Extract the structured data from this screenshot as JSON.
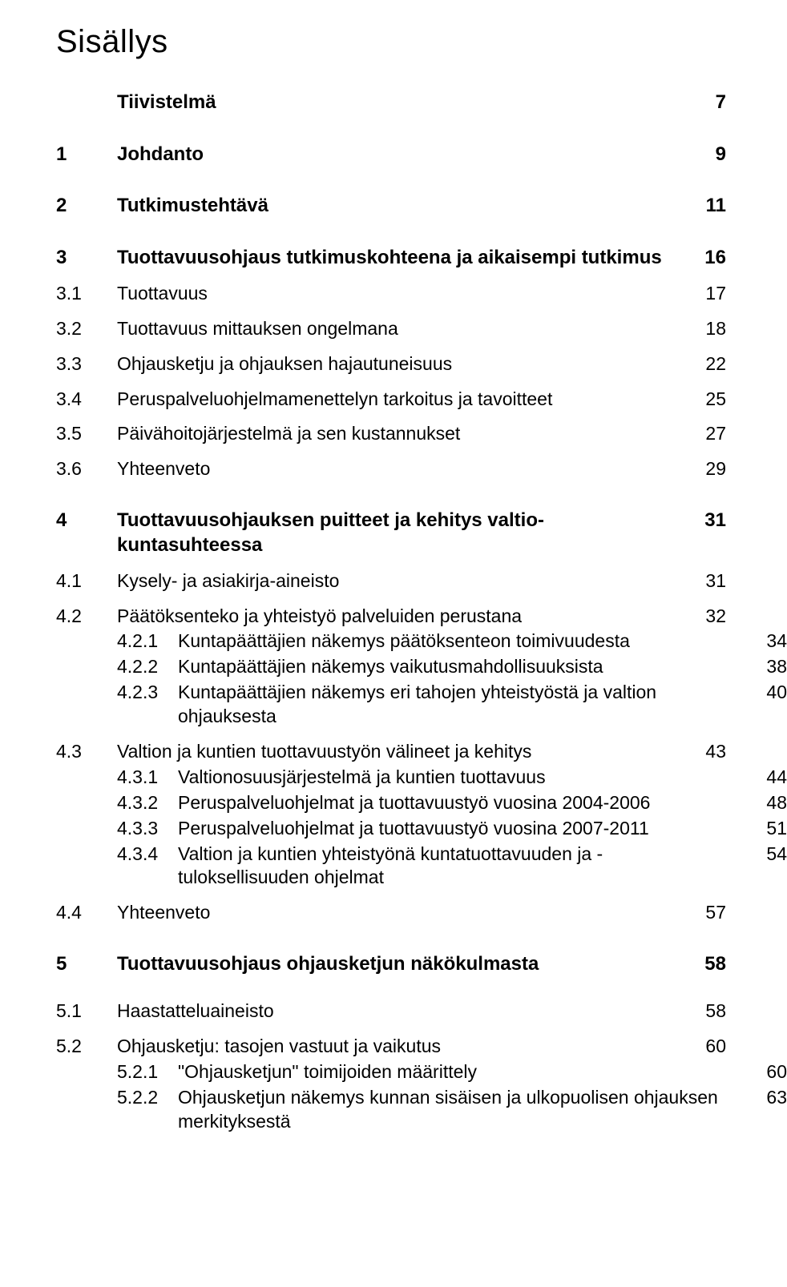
{
  "title": "Sisällys",
  "entries": [
    {
      "kind": "top",
      "num": "",
      "label": "Tiivistelmä",
      "page": "7",
      "bold": true,
      "gap": ""
    },
    {
      "kind": "top",
      "num": "1",
      "label": "Johdanto",
      "page": "9",
      "bold": true,
      "gap": "gap-xl"
    },
    {
      "kind": "top",
      "num": "2",
      "label": "Tutkimustehtävä",
      "page": "11",
      "bold": true,
      "gap": "gap-xl"
    },
    {
      "kind": "top",
      "num": "3",
      "label": "Tuottavuusohjaus tutkimuskohteena ja aikaisempi tutkimus",
      "page": "16",
      "bold": true,
      "gap": "gap-xl"
    },
    {
      "kind": "sub",
      "num": "3.1",
      "label": "Tuottavuus",
      "page": "17",
      "bold": false,
      "gap": "gap-m"
    },
    {
      "kind": "sub",
      "num": "3.2",
      "label": "Tuottavuus mittauksen ongelmana",
      "page": "18",
      "bold": false,
      "gap": "gap-m"
    },
    {
      "kind": "sub",
      "num": "3.3",
      "label": "Ohjausketju ja ohjauksen hajautuneisuus",
      "page": "22",
      "bold": false,
      "gap": "gap-m"
    },
    {
      "kind": "sub",
      "num": "3.4",
      "label": "Peruspalveluohjelmamenettelyn tarkoitus ja tavoitteet",
      "page": "25",
      "bold": false,
      "gap": "gap-m"
    },
    {
      "kind": "sub",
      "num": "3.5",
      "label": "Päivähoitojärjestelmä ja sen kustannukset",
      "page": "27",
      "bold": false,
      "gap": "gap-m"
    },
    {
      "kind": "sub",
      "num": "3.6",
      "label": "Yhteenveto",
      "page": "29",
      "bold": false,
      "gap": "gap-m"
    },
    {
      "kind": "top",
      "num": "4",
      "label": "Tuottavuusohjauksen puitteet ja kehitys valtio-kuntasuhteessa",
      "page": "31",
      "bold": true,
      "gap": "gap-xl"
    },
    {
      "kind": "sub",
      "num": "4.1",
      "label": "Kysely- ja asiakirja-aineisto",
      "page": "31",
      "bold": false,
      "gap": "gap-m"
    },
    {
      "kind": "sub",
      "num": "4.2",
      "label": "Päätöksenteko ja yhteistyö palveluiden perustana",
      "page": "32",
      "bold": false,
      "gap": "gap-m"
    },
    {
      "kind": "sub2",
      "num": "4.2.1",
      "label": "Kuntapäättäjien näkemys päätöksenteon toimivuudesta",
      "page": "34",
      "bold": false,
      "gap": "gap-s"
    },
    {
      "kind": "sub2",
      "num": "4.2.2",
      "label": "Kuntapäättäjien näkemys vaikutusmahdollisuuksista",
      "page": "38",
      "bold": false,
      "gap": "gap-s"
    },
    {
      "kind": "sub2",
      "num": "4.2.3",
      "label": "Kuntapäättäjien näkemys eri tahojen yhteistyöstä ja valtion ohjauksesta",
      "page": "40",
      "bold": false,
      "gap": "gap-s"
    },
    {
      "kind": "sub",
      "num": "4.3",
      "label": "Valtion ja kuntien tuottavuustyön välineet ja kehitys",
      "page": "43",
      "bold": false,
      "gap": "gap-m"
    },
    {
      "kind": "sub2",
      "num": "4.3.1",
      "label": "Valtionosuusjärjestelmä ja kuntien tuottavuus",
      "page": "44",
      "bold": false,
      "gap": "gap-s"
    },
    {
      "kind": "sub2",
      "num": "4.3.2",
      "label": "Peruspalveluohjelmat ja tuottavuustyö vuosina 2004-2006",
      "page": "48",
      "bold": false,
      "gap": "gap-s"
    },
    {
      "kind": "sub2",
      "num": "4.3.3",
      "label": "Peruspalveluohjelmat ja tuottavuustyö vuosina 2007-2011",
      "page": "51",
      "bold": false,
      "gap": "gap-s"
    },
    {
      "kind": "sub2",
      "num": "4.3.4",
      "label": "Valtion ja kuntien yhteistyönä kuntatuottavuuden ja -tuloksellisuuden ohjelmat",
      "page": "54",
      "bold": false,
      "gap": "gap-s"
    },
    {
      "kind": "sub",
      "num": "4.4",
      "label": "Yhteenveto",
      "page": "57",
      "bold": false,
      "gap": "gap-m"
    },
    {
      "kind": "top",
      "num": "5",
      "label": "Tuottavuusohjaus ohjausketjun näkökulmasta",
      "page": "58",
      "bold": true,
      "gap": "gap-xl"
    },
    {
      "kind": "sub",
      "num": "5.1",
      "label": "Haastatteluaineisto",
      "page": "58",
      "bold": false,
      "gap": "gap-l"
    },
    {
      "kind": "sub",
      "num": "5.2",
      "label": "Ohjausketju: tasojen vastuut ja vaikutus",
      "page": "60",
      "bold": false,
      "gap": "gap-m"
    },
    {
      "kind": "sub2",
      "num": "5.2.1",
      "label": "\"Ohjausketjun\" toimijoiden määrittely",
      "page": "60",
      "bold": false,
      "gap": "gap-s"
    },
    {
      "kind": "sub2",
      "num": "5.2.2",
      "label": "Ohjausketjun näkemys kunnan sisäisen ja ulkopuolisen ohjauksen merkityksestä",
      "page": "63",
      "bold": false,
      "gap": "gap-s"
    }
  ]
}
